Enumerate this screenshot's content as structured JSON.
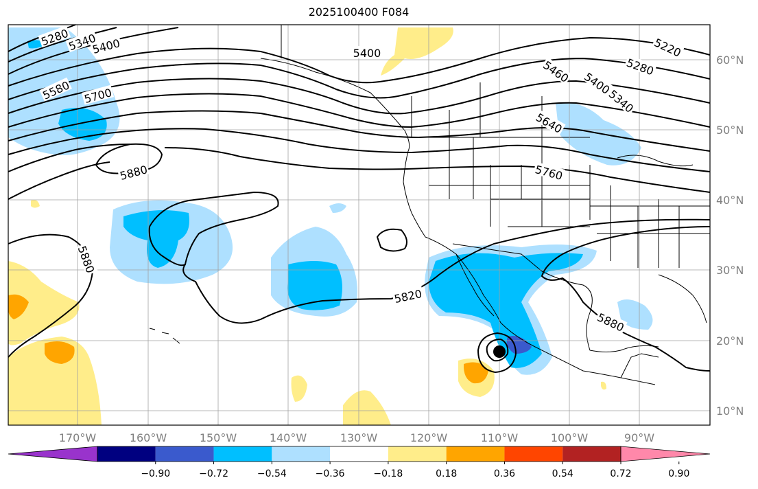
{
  "title": "2025100400 F084",
  "lon_labels": [
    "170°W",
    "160°W",
    "150°W",
    "140°W",
    "130°W",
    "120°W",
    "110°W",
    "100°W",
    "90°W"
  ],
  "lat_labels": [
    "60°N",
    "50°N",
    "40°N",
    "30°N",
    "20°N",
    "10°N"
  ],
  "contour_labels": [
    "5280",
    "5340",
    "5400",
    "5400",
    "5580",
    "5700",
    "5880",
    "5880",
    "5820",
    "5880",
    "5760",
    "5640",
    "5460",
    "5400",
    "5340",
    "5280",
    "5220"
  ],
  "colorbar": {
    "ticks": [
      "−0.90",
      "−0.72",
      "−0.54",
      "−0.36",
      "−0.18",
      "0.18",
      "0.36",
      "0.54",
      "0.72",
      "0.90"
    ],
    "colors": [
      "#9933cc",
      "#000080",
      "#3a5acd",
      "#00bfff",
      "#aee0ff",
      "#ffffff",
      "#ffed8a",
      "#ffa500",
      "#ff4500",
      "#b22222",
      "#ff88aa"
    ]
  },
  "colors": {
    "grid": "#a0a0a0",
    "axis_label": "#808080",
    "contour": "#000000"
  }
}
